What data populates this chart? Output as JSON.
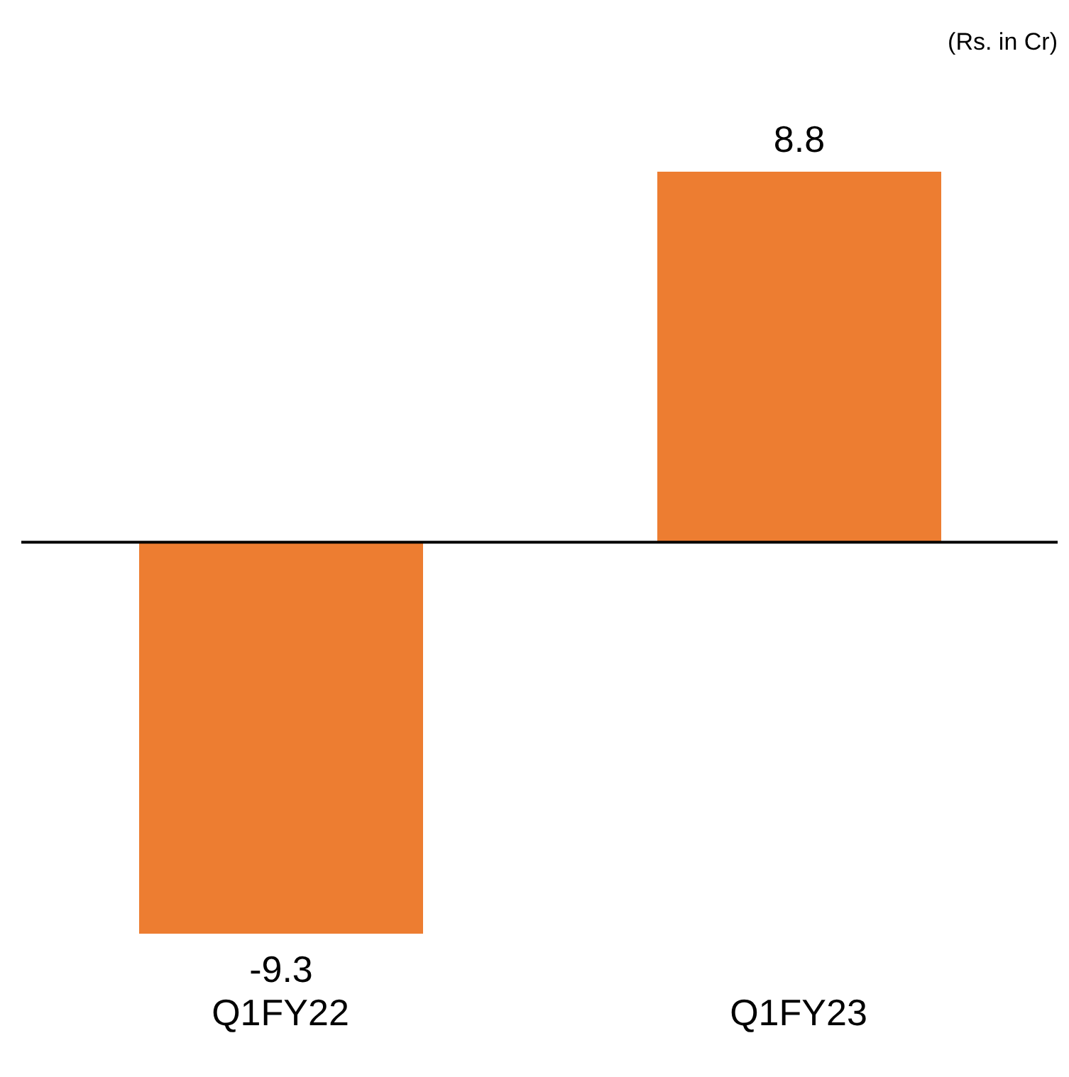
{
  "chart_data": {
    "type": "bar",
    "categories": [
      "Q1FY22",
      "Q1FY23"
    ],
    "values": [
      -9.3,
      8.8
    ],
    "color": "#ed7d31",
    "tick_labels": "x",
    "data_labels": true,
    "grid": false,
    "legend": false,
    "annotations": [
      "(Rs. in Cr)"
    ]
  }
}
